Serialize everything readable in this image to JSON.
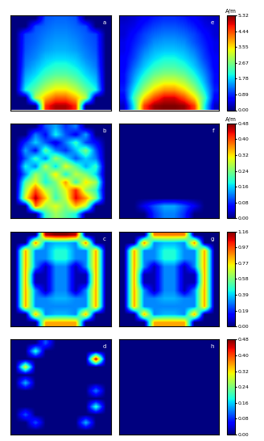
{
  "chart_data": [
    {
      "type": "heatmap",
      "label": "a",
      "tick_labels": false,
      "zlim": [
        0,
        5.32
      ],
      "cells": [
        [
          0,
          0,
          0,
          1.1,
          1.2,
          1.2,
          1.1,
          0,
          0,
          0
        ],
        [
          0,
          0,
          1.05,
          1.2,
          1.3,
          1.3,
          1.2,
          1.05,
          0,
          0
        ],
        [
          0,
          1.0,
          1.15,
          1.3,
          1.4,
          1.4,
          1.3,
          1.15,
          1.0,
          0
        ],
        [
          0,
          1.05,
          1.2,
          1.4,
          1.5,
          1.5,
          1.4,
          1.2,
          1.05,
          0
        ],
        [
          0,
          1.1,
          1.3,
          1.5,
          1.6,
          1.6,
          1.5,
          1.3,
          1.1,
          0
        ],
        [
          0,
          1.2,
          1.4,
          1.7,
          1.8,
          1.8,
          1.7,
          1.4,
          1.2,
          0
        ],
        [
          0,
          1.3,
          1.6,
          1.9,
          2.1,
          2.1,
          1.9,
          1.6,
          1.3,
          0
        ],
        [
          0,
          1.5,
          1.8,
          2.2,
          2.4,
          2.4,
          2.2,
          1.8,
          1.5,
          0
        ],
        [
          0,
          1.7,
          2.1,
          2.6,
          2.9,
          2.9,
          2.6,
          2.1,
          1.7,
          0
        ],
        [
          0,
          2.0,
          2.5,
          3.1,
          3.5,
          3.5,
          3.1,
          2.5,
          2.0,
          0
        ],
        [
          0,
          0,
          3.0,
          3.8,
          4.3,
          4.3,
          3.8,
          3.0,
          0,
          0
        ],
        [
          0,
          0,
          0,
          4.6,
          5.1,
          5.1,
          4.6,
          0,
          0,
          0
        ]
      ]
    },
    {
      "type": "heatmap",
      "label": "e",
      "tick_labels": false,
      "zlim": [
        0,
        5.32
      ],
      "cells": [
        [
          0.3,
          0.4,
          0.6,
          0.8,
          0.9,
          0.9,
          0.8,
          0.6,
          0.4,
          0.3
        ],
        [
          0.4,
          0.5,
          0.8,
          1.0,
          1.1,
          1.1,
          1.0,
          0.8,
          0.5,
          0.4
        ],
        [
          0.4,
          0.7,
          1.0,
          1.2,
          1.3,
          1.3,
          1.2,
          1.0,
          0.7,
          0.4
        ],
        [
          0.5,
          0.8,
          1.1,
          1.4,
          1.5,
          1.5,
          1.4,
          1.1,
          0.8,
          0.5
        ],
        [
          0.5,
          0.9,
          1.3,
          1.6,
          1.7,
          1.7,
          1.6,
          1.3,
          0.9,
          0.5
        ],
        [
          0.6,
          1.0,
          1.5,
          1.8,
          2.0,
          2.0,
          1.8,
          1.5,
          1.0,
          0.6
        ],
        [
          0.6,
          1.2,
          1.7,
          2.1,
          2.3,
          2.3,
          2.1,
          1.7,
          1.2,
          0.6
        ],
        [
          0.7,
          1.4,
          2.0,
          2.5,
          2.7,
          2.7,
          2.5,
          2.0,
          1.4,
          0.7
        ],
        [
          0.7,
          1.6,
          2.4,
          3.0,
          3.3,
          3.3,
          3.0,
          2.4,
          1.6,
          0.7
        ],
        [
          0.8,
          1.9,
          2.9,
          3.6,
          4.0,
          4.0,
          3.6,
          2.9,
          1.9,
          0.8
        ],
        [
          0.6,
          2.3,
          3.6,
          4.4,
          4.9,
          4.9,
          4.4,
          3.6,
          2.3,
          0.6
        ],
        [
          0.3,
          2.0,
          4.5,
          5.2,
          5.32,
          5.32,
          5.2,
          4.5,
          2.0,
          0.3
        ]
      ],
      "colorbar": {
        "title": "A/m",
        "ticks": [
          {
            "value": 0,
            "label": "0.00"
          },
          {
            "value": 0.89,
            "label": "0.89"
          },
          {
            "value": 1.78,
            "label": "1.78"
          },
          {
            "value": 2.67,
            "label": "2.67"
          },
          {
            "value": 3.55,
            "label": "3.55"
          },
          {
            "value": 4.44,
            "label": "4.44"
          },
          {
            "value": 5.32,
            "label": "5.32"
          }
        ]
      }
    },
    {
      "type": "heatmap",
      "label": "b",
      "tick_labels": false,
      "zlim": [
        0,
        0.48
      ],
      "cells": [
        [
          0,
          0,
          0,
          0.1,
          0.14,
          0.08,
          0.12,
          0,
          0,
          0
        ],
        [
          0,
          0,
          0.12,
          0.06,
          0.18,
          0.1,
          0.05,
          0.14,
          0,
          0
        ],
        [
          0,
          0.08,
          0.16,
          0.1,
          0.04,
          0.12,
          0.2,
          0.09,
          0.06,
          0
        ],
        [
          0,
          0.14,
          0.06,
          0.22,
          0.12,
          0.08,
          0.15,
          0.24,
          0.1,
          0
        ],
        [
          0,
          0.1,
          0.2,
          0.12,
          0.26,
          0.18,
          0.1,
          0.16,
          0.12,
          0
        ],
        [
          0,
          0.18,
          0.12,
          0.28,
          0.16,
          0.3,
          0.22,
          0.14,
          0.2,
          0
        ],
        [
          0,
          0.12,
          0.26,
          0.2,
          0.32,
          0.18,
          0.28,
          0.24,
          0.16,
          0
        ],
        [
          0,
          0.22,
          0.3,
          0.18,
          0.24,
          0.36,
          0.2,
          0.32,
          0.26,
          0
        ],
        [
          0,
          0.26,
          0.4,
          0.28,
          0.22,
          0.3,
          0.42,
          0.26,
          0.2,
          0
        ],
        [
          0,
          0.3,
          0.46,
          0.34,
          0.2,
          0.28,
          0.44,
          0.36,
          0.24,
          0
        ],
        [
          0,
          0,
          0.38,
          0.26,
          0.3,
          0.24,
          0.34,
          0.28,
          0,
          0
        ],
        [
          0,
          0,
          0,
          0.2,
          0.26,
          0.22,
          0.18,
          0,
          0,
          0
        ]
      ]
    },
    {
      "type": "heatmap",
      "label": "f",
      "tick_labels": false,
      "zlim": [
        0,
        0.48
      ],
      "cells": [
        [
          0,
          0,
          0,
          0,
          0,
          0,
          0,
          0,
          0,
          0
        ],
        [
          0,
          0,
          0,
          0,
          0,
          0,
          0,
          0,
          0,
          0
        ],
        [
          0,
          0,
          0,
          0,
          0,
          0,
          0,
          0,
          0,
          0
        ],
        [
          0,
          0,
          0,
          0,
          0,
          0,
          0,
          0,
          0,
          0
        ],
        [
          0,
          0,
          0,
          0,
          0,
          0,
          0,
          0,
          0,
          0
        ],
        [
          0,
          0,
          0,
          0,
          0,
          0,
          0,
          0,
          0,
          0
        ],
        [
          0,
          0,
          0,
          0,
          0,
          0,
          0,
          0,
          0,
          0
        ],
        [
          0,
          0,
          0,
          0,
          0,
          0,
          0,
          0,
          0,
          0
        ],
        [
          0,
          0,
          0,
          0,
          0,
          0,
          0,
          0,
          0,
          0
        ],
        [
          0,
          0,
          0,
          0,
          0,
          0,
          0,
          0,
          0,
          0
        ],
        [
          0,
          0,
          0.05,
          0.1,
          0.14,
          0.14,
          0.1,
          0.05,
          0,
          0
        ],
        [
          0,
          0,
          0,
          0.08,
          0.12,
          0.12,
          0.08,
          0,
          0,
          0
        ]
      ],
      "colorbar": {
        "title": "A/m",
        "ticks": [
          {
            "value": 0,
            "label": "0.00"
          },
          {
            "value": 0.08,
            "label": "0.08"
          },
          {
            "value": 0.16,
            "label": "0.16"
          },
          {
            "value": 0.24,
            "label": "0.24"
          },
          {
            "value": 0.32,
            "label": "0.32"
          },
          {
            "value": 0.4,
            "label": "0.40"
          },
          {
            "value": 0.48,
            "label": "0.48"
          }
        ]
      }
    },
    {
      "type": "heatmap",
      "label": "c",
      "tick_labels": false,
      "zlim": [
        0,
        1.16
      ],
      "cells": [
        [
          0,
          0,
          0,
          1.1,
          1.16,
          1.16,
          1.1,
          0,
          0,
          0
        ],
        [
          0,
          0,
          0.9,
          0.3,
          0.35,
          0.35,
          0.3,
          0.9,
          0,
          0
        ],
        [
          0,
          0.85,
          0.3,
          0.3,
          0.45,
          0.45,
          0.3,
          0.3,
          0.85,
          0
        ],
        [
          0,
          0.85,
          0.3,
          0.3,
          0.45,
          0.45,
          0.3,
          0.3,
          0.85,
          0
        ],
        [
          0,
          0.85,
          0.3,
          0.05,
          0.3,
          0.3,
          0.05,
          0.3,
          0.85,
          0
        ],
        [
          0,
          0.85,
          0.05,
          0.05,
          0.3,
          0.3,
          0.05,
          0.05,
          0.85,
          0
        ],
        [
          0,
          0.85,
          0.05,
          0.05,
          0.3,
          0.3,
          0.05,
          0.05,
          0.85,
          0
        ],
        [
          0,
          0.85,
          0.3,
          0.05,
          0.3,
          0.3,
          0.05,
          0.3,
          0.85,
          0
        ],
        [
          0,
          0.85,
          0.3,
          0.3,
          0.35,
          0.35,
          0.3,
          0.3,
          0.85,
          0
        ],
        [
          0,
          0.85,
          0.3,
          0.3,
          0.3,
          0.3,
          0.3,
          0.3,
          0.85,
          0
        ],
        [
          0,
          0,
          0.85,
          0.3,
          0.35,
          0.35,
          0.3,
          0.85,
          0,
          0
        ],
        [
          0,
          0,
          0,
          0.85,
          0.85,
          0.85,
          0.85,
          0,
          0,
          0
        ]
      ]
    },
    {
      "type": "heatmap",
      "label": "g",
      "tick_labels": false,
      "zlim": [
        0,
        1.16
      ],
      "cells": [
        [
          0,
          0,
          0,
          0.9,
          0.9,
          0.9,
          0.9,
          0,
          0,
          0
        ],
        [
          0,
          0,
          0.9,
          0.3,
          0.35,
          0.35,
          0.3,
          0.9,
          0,
          0
        ],
        [
          0,
          0.85,
          0.3,
          0.3,
          0.45,
          0.45,
          0.3,
          0.3,
          0.85,
          0
        ],
        [
          0,
          0.85,
          0.3,
          0.3,
          0.45,
          0.45,
          0.3,
          0.3,
          0.85,
          0
        ],
        [
          0,
          0.85,
          0.3,
          0.05,
          0.3,
          0.3,
          0.05,
          0.3,
          0.85,
          0
        ],
        [
          0,
          0.85,
          0.05,
          0.05,
          0.3,
          0.3,
          0.05,
          0.05,
          0.85,
          0
        ],
        [
          0,
          0.85,
          0.05,
          0.05,
          0.3,
          0.3,
          0.05,
          0.05,
          0.85,
          0
        ],
        [
          0,
          0.85,
          0.3,
          0.05,
          0.3,
          0.3,
          0.05,
          0.3,
          0.85,
          0
        ],
        [
          0,
          0.85,
          0.3,
          0.3,
          0.35,
          0.35,
          0.3,
          0.3,
          0.85,
          0
        ],
        [
          0,
          0.85,
          0.3,
          0.3,
          0.3,
          0.3,
          0.3,
          0.3,
          0.85,
          0
        ],
        [
          0,
          0,
          0.85,
          0.3,
          0.35,
          0.35,
          0.3,
          0.85,
          0,
          0
        ],
        [
          0,
          0,
          0,
          0.85,
          0.85,
          0.85,
          0.85,
          0,
          0,
          0
        ]
      ],
      "colorbar": {
        "ticks": [
          {
            "value": 0,
            "label": "0.00"
          },
          {
            "value": 0.19,
            "label": "0.19"
          },
          {
            "value": 0.39,
            "label": "0.39"
          },
          {
            "value": 0.58,
            "label": "0.58"
          },
          {
            "value": 0.77,
            "label": "0.77"
          },
          {
            "value": 0.97,
            "label": "0.97"
          },
          {
            "value": 1.16,
            "label": "1.16"
          }
        ]
      }
    },
    {
      "type": "heatmap",
      "label": "d",
      "tick_labels": false,
      "zlim": [
        0,
        0.48
      ],
      "cells": [
        [
          0,
          0,
          0,
          0.1,
          0,
          0,
          0,
          0,
          0,
          0
        ],
        [
          0,
          0,
          0.2,
          0,
          0,
          0,
          0,
          0,
          0,
          0
        ],
        [
          0,
          0,
          0,
          0,
          0,
          0,
          0,
          0,
          0.45,
          0
        ],
        [
          0,
          0.3,
          0,
          0,
          0,
          0,
          0,
          0,
          0,
          0
        ],
        [
          0,
          0,
          0,
          0,
          0,
          0,
          0,
          0,
          0,
          0
        ],
        [
          0,
          0.15,
          0,
          0,
          0,
          0,
          0,
          0,
          0,
          0
        ],
        [
          0,
          0,
          0,
          0,
          0,
          0,
          0,
          0,
          0.12,
          0
        ],
        [
          0,
          0,
          0,
          0,
          0,
          0,
          0,
          0,
          0,
          0
        ],
        [
          0,
          0,
          0,
          0,
          0,
          0,
          0,
          0,
          0.2,
          0
        ],
        [
          0,
          0.1,
          0,
          0,
          0,
          0,
          0,
          0,
          0,
          0
        ],
        [
          0,
          0,
          0.1,
          0,
          0,
          0,
          0,
          0.15,
          0,
          0
        ],
        [
          0,
          0,
          0,
          0,
          0,
          0,
          0,
          0,
          0,
          0
        ]
      ]
    },
    {
      "type": "heatmap",
      "label": "h",
      "tick_labels": false,
      "zlim": [
        0,
        0.48
      ],
      "cells": [
        [
          0,
          0,
          0,
          0,
          0,
          0,
          0,
          0,
          0,
          0
        ],
        [
          0,
          0,
          0,
          0,
          0,
          0,
          0,
          0,
          0,
          0
        ],
        [
          0,
          0,
          0,
          0,
          0,
          0,
          0,
          0,
          0,
          0
        ],
        [
          0,
          0,
          0,
          0,
          0,
          0,
          0,
          0,
          0,
          0
        ],
        [
          0,
          0,
          0,
          0,
          0,
          0,
          0,
          0,
          0,
          0
        ],
        [
          0,
          0,
          0,
          0,
          0,
          0,
          0,
          0,
          0,
          0
        ],
        [
          0,
          0,
          0,
          0,
          0,
          0,
          0,
          0,
          0,
          0
        ],
        [
          0,
          0,
          0,
          0,
          0,
          0,
          0,
          0,
          0,
          0
        ],
        [
          0,
          0,
          0,
          0,
          0,
          0,
          0,
          0,
          0,
          0
        ],
        [
          0,
          0,
          0,
          0,
          0,
          0,
          0,
          0,
          0,
          0
        ],
        [
          0,
          0,
          0,
          0,
          0,
          0,
          0,
          0,
          0,
          0
        ],
        [
          0,
          0,
          0,
          0,
          0,
          0,
          0,
          0,
          0,
          0
        ]
      ],
      "colorbar": {
        "ticks": [
          {
            "value": 0,
            "label": "0.00"
          },
          {
            "value": 0.08,
            "label": "0.08"
          },
          {
            "value": 0.16,
            "label": "0.16"
          },
          {
            "value": 0.24,
            "label": "0.24"
          },
          {
            "value": 0.32,
            "label": "0.32"
          },
          {
            "value": 0.4,
            "label": "0.40"
          },
          {
            "value": 0.48,
            "label": "0.48"
          }
        ]
      }
    }
  ]
}
